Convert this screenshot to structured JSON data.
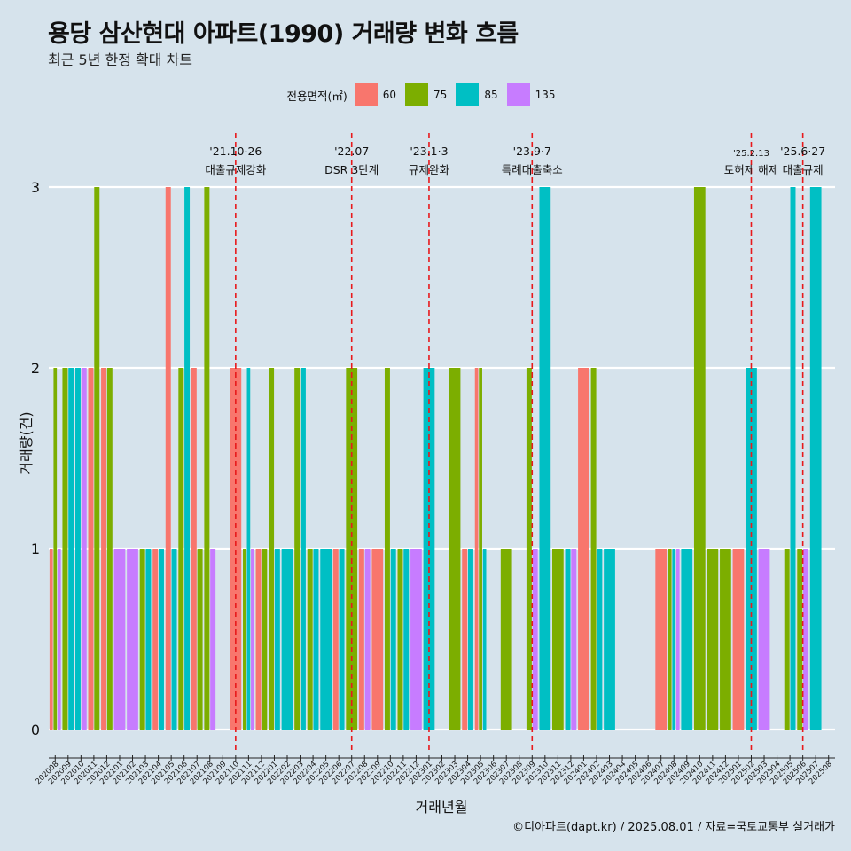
{
  "header": {
    "title": "용당 삼산현대 아파트(1990) 거래량 변화 흐름",
    "subtitle": "최근 5년 한정 확대 차트"
  },
  "legend": {
    "title": "전용면적(㎡)",
    "items": [
      {
        "label": "60",
        "color": "#f8766d"
      },
      {
        "label": "75",
        "color": "#7cae00"
      },
      {
        "label": "85",
        "color": "#00bfc4"
      },
      {
        "label": "135",
        "color": "#c77cff"
      }
    ]
  },
  "caption": "©디아파트(dapt.kr) / 2025.08.01 / 자료=국토교통부 실거래가",
  "chart_data": {
    "type": "bar",
    "xlabel": "거래년월",
    "ylabel": "거래량(건)",
    "ylim": [
      0,
      3
    ],
    "yticks": [
      0,
      1,
      2,
      3
    ],
    "grid": "horizontal",
    "legend_position": "top",
    "categories": [
      "202008",
      "202009",
      "202010",
      "202011",
      "202012",
      "202101",
      "202102",
      "202103",
      "202104",
      "202105",
      "202106",
      "202107",
      "202108",
      "202109",
      "202110",
      "202111",
      "202112",
      "202201",
      "202202",
      "202203",
      "202204",
      "202205",
      "202206",
      "202207",
      "202208",
      "202209",
      "202210",
      "202211",
      "202212",
      "202301",
      "202302",
      "202303",
      "202304",
      "202305",
      "202306",
      "202307",
      "202308",
      "202309",
      "202310",
      "202311",
      "202312",
      "202401",
      "202402",
      "202403",
      "202404",
      "202405",
      "202406",
      "202407",
      "202408",
      "202409",
      "202410",
      "202411",
      "202412",
      "202501",
      "202502",
      "202503",
      "202504",
      "202505",
      "202506",
      "202507",
      "202508"
    ],
    "series": [
      {
        "name": "60",
        "values": [
          1,
          0,
          0,
          2,
          2,
          0,
          0,
          0,
          1,
          3,
          0,
          2,
          0,
          0,
          2,
          0,
          1,
          0,
          0,
          0,
          0,
          0,
          1,
          0,
          1,
          1,
          0,
          0,
          0,
          0,
          0,
          0,
          1,
          2,
          0,
          0,
          0,
          0,
          0,
          0,
          0,
          2,
          0,
          0,
          0,
          0,
          0,
          1,
          0,
          0,
          0,
          0,
          0,
          1,
          0,
          0,
          0,
          0,
          0,
          0,
          0
        ]
      },
      {
        "name": "75",
        "values": [
          2,
          2,
          0,
          3,
          2,
          0,
          0,
          1,
          0,
          0,
          2,
          1,
          3,
          0,
          0,
          1,
          1,
          2,
          0,
          2,
          1,
          0,
          0,
          2,
          0,
          0,
          2,
          1,
          0,
          0,
          0,
          2,
          0,
          2,
          0,
          1,
          0,
          2,
          0,
          1,
          0,
          0,
          2,
          0,
          0,
          0,
          0,
          0,
          1,
          0,
          3,
          1,
          1,
          0,
          0,
          0,
          0,
          1,
          1,
          0,
          0
        ]
      },
      {
        "name": "85",
        "values": [
          0,
          2,
          2,
          0,
          0,
          0,
          0,
          1,
          1,
          1,
          3,
          0,
          0,
          0,
          0,
          2,
          0,
          1,
          1,
          2,
          1,
          1,
          1,
          0,
          0,
          0,
          1,
          1,
          0,
          2,
          0,
          0,
          1,
          1,
          0,
          0,
          0,
          0,
          3,
          0,
          1,
          0,
          1,
          1,
          0,
          0,
          0,
          0,
          1,
          1,
          0,
          0,
          0,
          0,
          2,
          0,
          0,
          3,
          0,
          3,
          0
        ]
      },
      {
        "name": "135",
        "values": [
          1,
          0,
          2,
          0,
          0,
          1,
          1,
          0,
          0,
          0,
          0,
          0,
          1,
          0,
          0,
          1,
          0,
          0,
          0,
          0,
          0,
          0,
          0,
          0,
          1,
          0,
          0,
          0,
          1,
          0,
          0,
          0,
          0,
          0,
          0,
          0,
          0,
          1,
          0,
          0,
          1,
          0,
          0,
          0,
          0,
          0,
          0,
          0,
          1,
          0,
          0,
          0,
          0,
          0,
          0,
          1,
          0,
          0,
          1,
          0,
          0
        ]
      }
    ],
    "events": [
      {
        "date": "'21.10·26",
        "label": "대출규제강화",
        "after": "202110"
      },
      {
        "date": "'22.07",
        "label": "DSR 3단계",
        "after": "202207"
      },
      {
        "date": "'23.1·3",
        "label": "규제완화",
        "after": "202301"
      },
      {
        "date": "'23.9·7",
        "label": "특례대출축소",
        "after": "202309"
      },
      {
        "date": "'25.2.13",
        "label": "토허제 해제",
        "after": "202502"
      },
      {
        "date": "'25.6·27",
        "label": "대출규제",
        "after": "202506"
      }
    ]
  }
}
